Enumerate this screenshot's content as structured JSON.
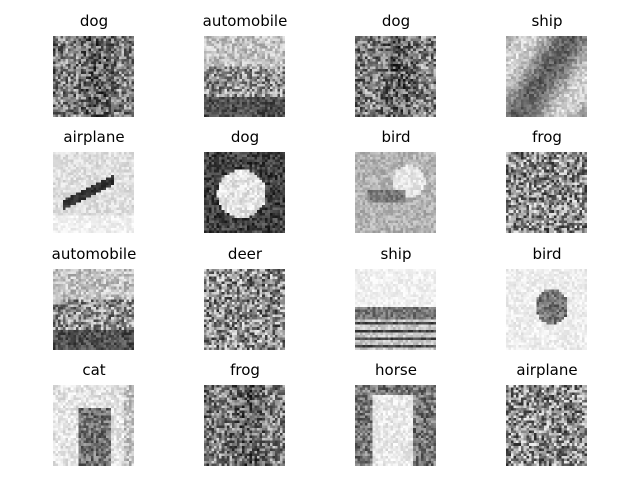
{
  "thumbnails": [
    {
      "label": "dog",
      "tone": "dark-animal"
    },
    {
      "label": "automobile",
      "tone": "car"
    },
    {
      "label": "dog",
      "tone": "dark-animal"
    },
    {
      "label": "ship",
      "tone": "boat"
    },
    {
      "label": "airplane",
      "tone": "plane-light"
    },
    {
      "label": "dog",
      "tone": "white-dog"
    },
    {
      "label": "bird",
      "tone": "bird-head"
    },
    {
      "label": "frog",
      "tone": "texture"
    },
    {
      "label": "automobile",
      "tone": "car"
    },
    {
      "label": "deer",
      "tone": "texture"
    },
    {
      "label": "ship",
      "tone": "ship-dock"
    },
    {
      "label": "bird",
      "tone": "bird-branch"
    },
    {
      "label": "cat",
      "tone": "cat"
    },
    {
      "label": "frog",
      "tone": "dark-animal"
    },
    {
      "label": "horse",
      "tone": "white-horse"
    },
    {
      "label": "airplane",
      "tone": "texture"
    }
  ]
}
